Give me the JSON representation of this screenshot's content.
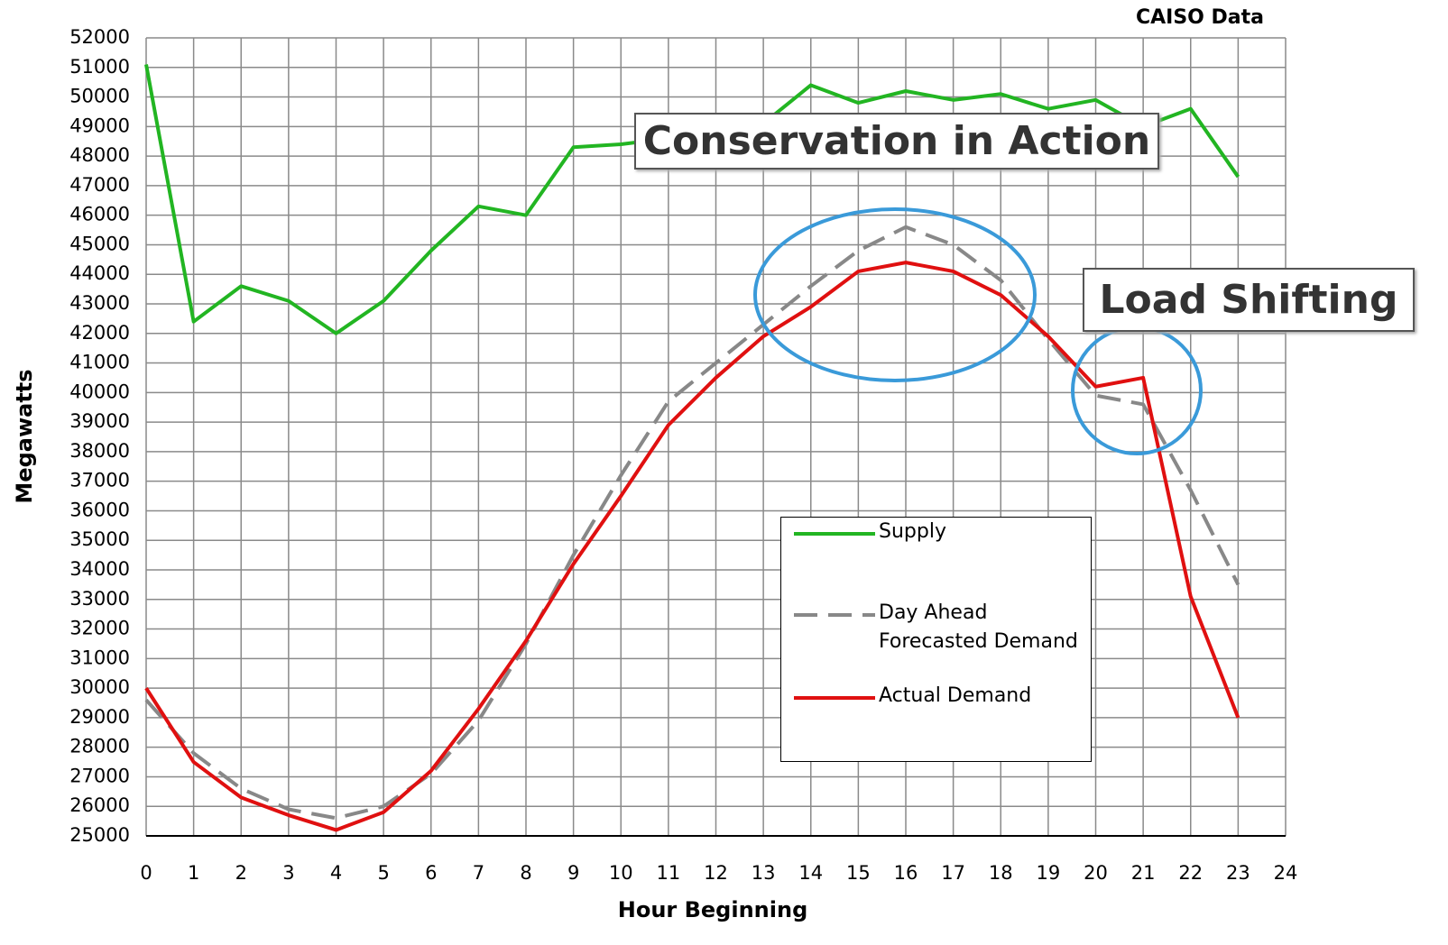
{
  "chart_data": {
    "type": "line",
    "subtitle": "CAISO Data",
    "x_label": "Hour Beginning",
    "y_label": "Megawatts",
    "x": [
      0,
      1,
      2,
      3,
      4,
      5,
      6,
      7,
      8,
      9,
      10,
      11,
      12,
      13,
      14,
      15,
      16,
      17,
      18,
      19,
      20,
      21,
      22,
      23
    ],
    "series": [
      {
        "name": "Supply",
        "color": "#22b522",
        "dash": false,
        "values": [
          51100,
          42400,
          43600,
          43100,
          42000,
          43100,
          44800,
          46300,
          46000,
          48300,
          48400,
          48600,
          48900,
          49100,
          50400,
          49800,
          50200,
          49900,
          50100,
          49600,
          49900,
          49000,
          49600,
          47300
        ]
      },
      {
        "name": "Day Ahead Forecasted Demand",
        "color": "#888888",
        "dash": true,
        "values": [
          29600,
          27800,
          26600,
          25900,
          25600,
          26000,
          27100,
          28900,
          31500,
          34500,
          37200,
          39700,
          41000,
          42300,
          43600,
          44800,
          45600,
          45000,
          43800,
          41800,
          39900,
          39600,
          36700,
          33500
        ]
      },
      {
        "name": "Actual Demand",
        "color": "#e01010",
        "dash": false,
        "values": [
          30000,
          27500,
          26300,
          25700,
          25200,
          25800,
          27200,
          29300,
          31600,
          34200,
          36500,
          38900,
          40500,
          41900,
          42900,
          44100,
          44400,
          44100,
          43300,
          41900,
          40200,
          40500,
          33100,
          29000
        ]
      }
    ],
    "xlim": [
      0,
      24
    ],
    "xticks": [
      0,
      1,
      2,
      3,
      4,
      5,
      6,
      7,
      8,
      9,
      10,
      11,
      12,
      13,
      14,
      15,
      16,
      17,
      18,
      19,
      20,
      21,
      22,
      23,
      24
    ],
    "ylim": [
      25000,
      52000
    ],
    "yticks": [
      25000,
      26000,
      27000,
      28000,
      29000,
      30000,
      31000,
      32000,
      33000,
      34000,
      35000,
      36000,
      37000,
      38000,
      39000,
      40000,
      41000,
      42000,
      43000,
      44000,
      45000,
      46000,
      47000,
      48000,
      49000,
      50000,
      51000,
      52000
    ],
    "grid": true,
    "annotations": [
      "Conservation in Action",
      "Load Shifting"
    ]
  }
}
